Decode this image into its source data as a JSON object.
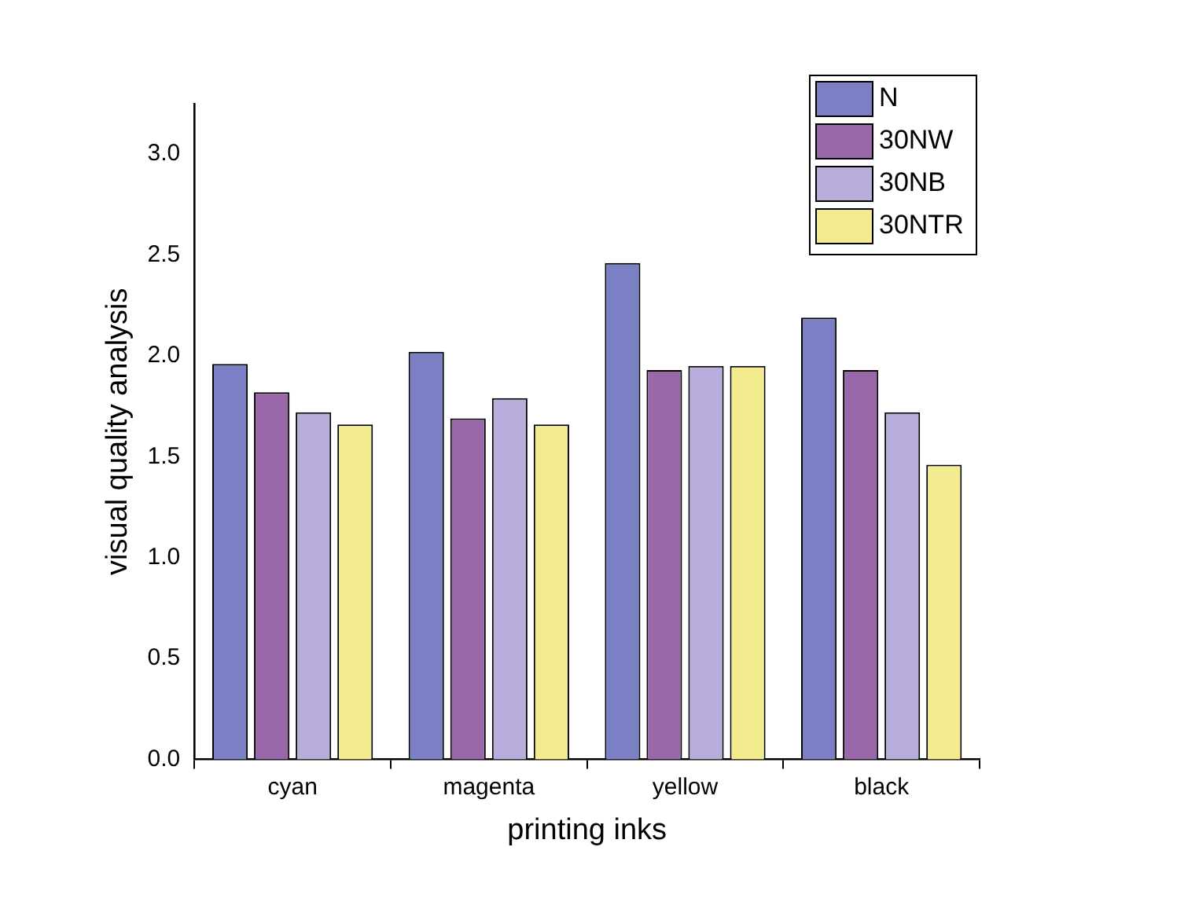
{
  "chart_data": {
    "type": "bar",
    "xlabel": "printing inks",
    "ylabel": "visual quality analysis",
    "categories": [
      "cyan",
      "magenta",
      "yellow",
      "black"
    ],
    "series": [
      {
        "name": "N",
        "color": "#7b80c4",
        "values": [
          1.96,
          2.02,
          2.46,
          2.19
        ]
      },
      {
        "name": "30NW",
        "color": "#9a68a8",
        "values": [
          1.82,
          1.69,
          1.93,
          1.93
        ]
      },
      {
        "name": "30NB",
        "color": "#b9aedb",
        "values": [
          1.72,
          1.79,
          1.95,
          1.72
        ]
      },
      {
        "name": "30NTR",
        "color": "#f2ec8e",
        "values": [
          1.66,
          1.66,
          1.95,
          1.46
        ]
      }
    ],
    "ylim": [
      0,
      3.25
    ],
    "yticks": [
      {
        "value": 0,
        "label": "0.0"
      },
      {
        "value": 0.5,
        "label": "0.5"
      },
      {
        "value": 1,
        "label": "1.0"
      },
      {
        "value": 1.5,
        "label": "1.5"
      },
      {
        "value": 2,
        "label": "2.0"
      },
      {
        "value": 2.5,
        "label": "2.5"
      },
      {
        "value": 3,
        "label": "3.0"
      }
    ],
    "grid": false,
    "legend": "top right"
  }
}
